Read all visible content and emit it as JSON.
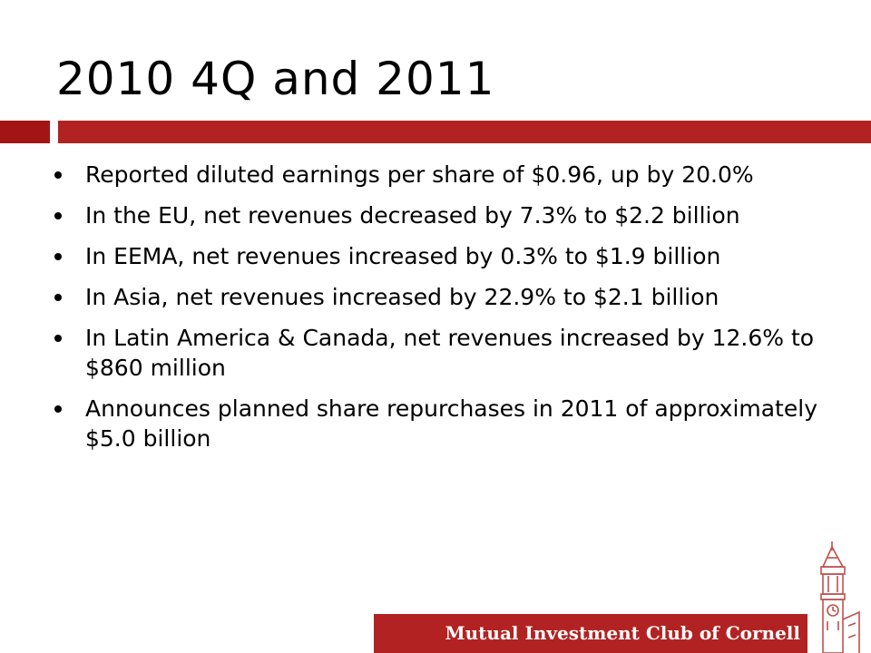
{
  "slide": {
    "title": "2010 4Q and 2011",
    "bullets": [
      "Reported diluted earnings per share of $0.96, up by 20.0%",
      "In the EU, net revenues decreased by 7.3% to $2.2 billion",
      "In EEMA, net revenues increased by 0.3% to $1.9 billion",
      "In Asia, net revenues increased by 22.9% to $2.1 billion",
      "In Latin America & Canada, net revenues increased by 12.6% to $860 million",
      "Announces planned share repurchases in 2011 of approximately $5.0 billion"
    ]
  },
  "footer": {
    "org_name": "Mutual Investment Club of Cornell"
  },
  "colors": {
    "accent": "#b22222",
    "accent_dark": "#a31515",
    "tower": "#c0504d"
  },
  "icons": {
    "logo": "clock-tower-icon"
  }
}
